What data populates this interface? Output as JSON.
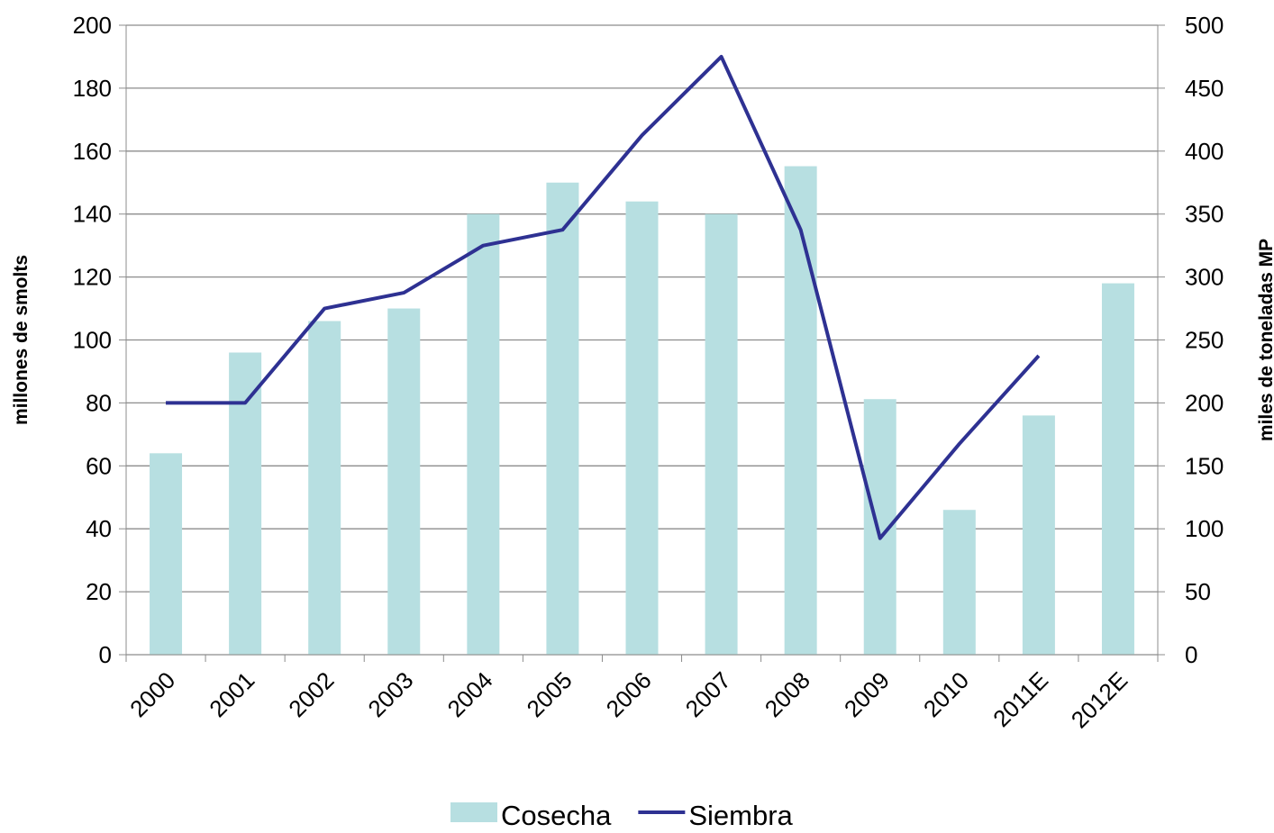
{
  "chart_data": {
    "type": "bar-line",
    "categories": [
      "2000",
      "2001",
      "2002",
      "2003",
      "2004",
      "2005",
      "2006",
      "2007",
      "2008",
      "2009",
      "2010",
      "2011E",
      "2012E"
    ],
    "ylabel": "millones de smolts",
    "y2label": "miles de toneladas MP",
    "ylim": [
      0,
      200
    ],
    "yticks": [
      0,
      20,
      40,
      60,
      80,
      100,
      120,
      140,
      160,
      180,
      200
    ],
    "y2lim": [
      0,
      500
    ],
    "y2ticks": [
      0,
      50,
      100,
      150,
      200,
      250,
      300,
      350,
      400,
      450,
      500
    ],
    "grid": true,
    "legend": "bottom",
    "series": [
      {
        "name": "Cosecha",
        "type": "bar",
        "axis": "y2",
        "color": "#b7dfe1",
        "values": [
          160,
          240,
          265,
          275,
          350,
          375,
          360,
          350,
          388,
          203,
          115,
          190,
          295
        ]
      },
      {
        "name": "Siembra",
        "type": "line",
        "axis": "y",
        "color": "#2e3192",
        "values": [
          80,
          80,
          110,
          115,
          130,
          135,
          165,
          190,
          135,
          37,
          67,
          95,
          null
        ]
      }
    ]
  }
}
